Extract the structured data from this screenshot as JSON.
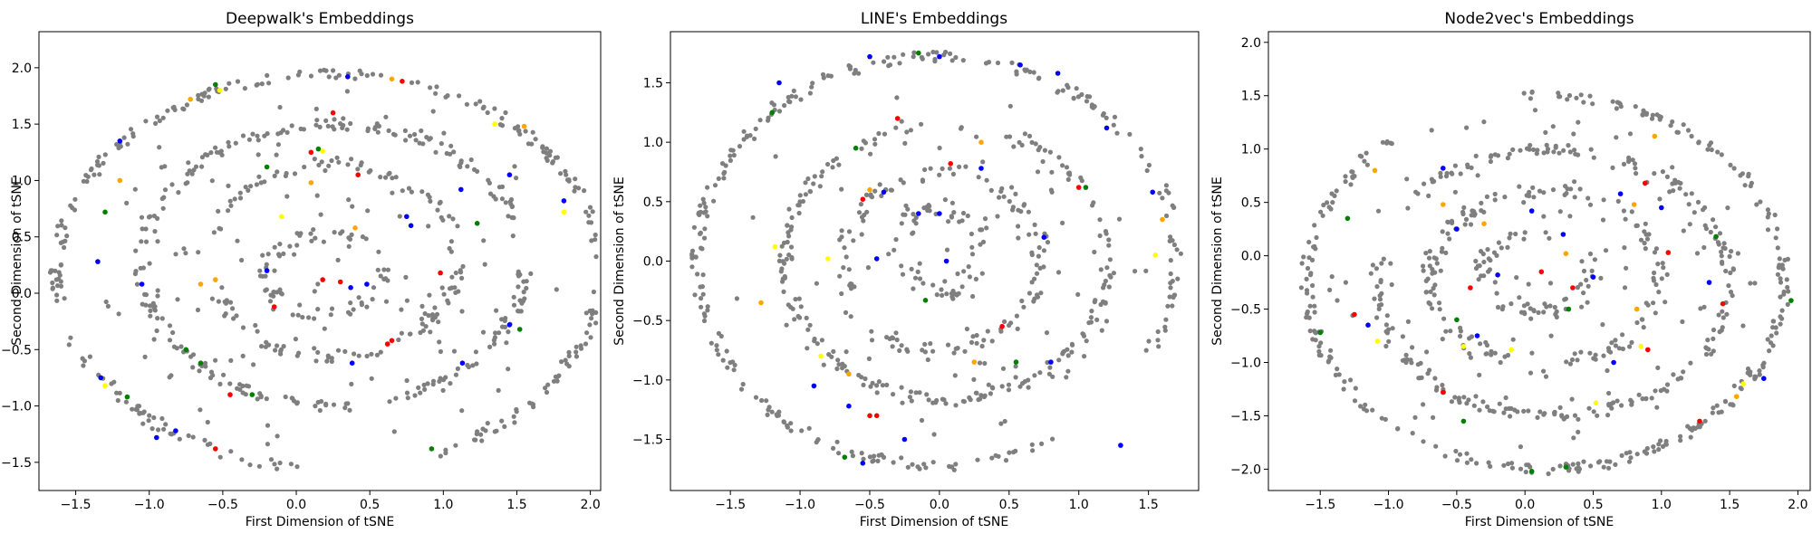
{
  "chart_data": [
    {
      "type": "scatter",
      "title": "Deepwalk's Embeddings",
      "xlabel": "First Dimension of tSNE",
      "ylabel": "Second Dimension of tSNE",
      "xlim": [
        -1.75,
        2.07
      ],
      "ylim": [
        -1.75,
        2.32
      ],
      "xticks": [
        -1.5,
        -1.0,
        -0.5,
        0.0,
        0.5,
        1.0,
        1.5,
        2.0
      ],
      "yticks": [
        -1.5,
        -1.0,
        -0.5,
        0.0,
        0.5,
        1.0,
        1.5,
        2.0
      ],
      "grid": false,
      "colors": {
        "base": "#7f7f7f",
        "red": "#ff0000",
        "blue": "#0000ff",
        "green": "#008000",
        "orange": "#ffa500",
        "yellow": "#ffff00"
      },
      "structure": {
        "rings": [
          {
            "cx": 0.22,
            "cy": 0.2,
            "rx": 1.85,
            "ry": 1.75,
            "n": 320,
            "gap": [
              265,
              290
            ],
            "jitter": 0.045
          },
          {
            "cx": 0.25,
            "cy": 0.25,
            "rx": 1.3,
            "ry": 1.25,
            "n": 230,
            "gap": [
              -20,
              10
            ],
            "jitter": 0.05
          },
          {
            "cx": 0.25,
            "cy": 0.3,
            "rx": 0.85,
            "ry": 0.85,
            "n": 150,
            "gap": [
              160,
              200
            ],
            "jitter": 0.06
          },
          {
            "cx": 0.2,
            "cy": 0.15,
            "rx": 0.4,
            "ry": 0.35,
            "n": 70,
            "gap": [
              20,
              60
            ],
            "jitter": 0.07
          }
        ],
        "scatter": {
          "cx": 0.2,
          "cy": 0.2,
          "rx": 1.6,
          "ry": 1.6,
          "n": 120
        }
      },
      "series": [
        {
          "x": [
            0.25,
            0.42,
            0.98,
            0.65,
            0.1,
            -0.45,
            -0.15,
            0.3,
            0.18,
            0.72,
            -0.55,
            0.62
          ],
          "y": [
            1.6,
            1.05,
            0.18,
            -0.42,
            1.25,
            -0.9,
            -0.12,
            0.1,
            0.12,
            1.88,
            -1.38,
            -0.45
          ],
          "color": "#ff0000"
        },
        {
          "x": [
            1.12,
            1.45,
            0.78,
            0.37,
            -1.33,
            -1.05,
            -0.82,
            1.13,
            0.38,
            0.75,
            0.48,
            -1.35,
            -0.95,
            1.45,
            0.35,
            -0.2,
            1.82,
            -1.2
          ],
          "y": [
            0.92,
            1.05,
            0.6,
            0.05,
            -0.75,
            0.08,
            -1.22,
            -0.62,
            -0.62,
            0.68,
            0.08,
            0.28,
            -1.28,
            -0.28,
            1.92,
            0.2,
            0.82,
            1.35
          ],
          "color": "#0000ff"
        },
        {
          "x": [
            -1.3,
            -0.75,
            -1.15,
            1.23,
            0.92,
            -0.3,
            -0.2,
            -0.55,
            1.52,
            -0.65,
            0.15
          ],
          "y": [
            0.72,
            -0.5,
            -0.92,
            0.62,
            -1.38,
            -0.9,
            1.12,
            1.85,
            -0.32,
            -0.62,
            1.28
          ],
          "color": "#008000"
        },
        {
          "x": [
            -0.65,
            -0.55,
            0.1,
            -1.2,
            -0.72,
            1.55,
            0.4,
            0.65
          ],
          "y": [
            0.08,
            0.12,
            0.98,
            1.0,
            1.72,
            1.48,
            0.58,
            1.9
          ],
          "color": "#ffa500"
        },
        {
          "x": [
            -0.1,
            0.18,
            1.82,
            -0.52,
            1.35,
            -1.3
          ],
          "y": [
            0.68,
            1.26,
            0.72,
            1.8,
            1.5,
            -0.82
          ],
          "color": "#ffff00"
        }
      ]
    },
    {
      "type": "scatter",
      "title": "LINE's Embeddings",
      "xlabel": "First Dimension of tSNE",
      "ylabel": "Second Dimension of tSNE",
      "xlim": [
        -1.93,
        1.86
      ],
      "ylim": [
        -1.93,
        1.93
      ],
      "xticks": [
        -1.5,
        -1.0,
        -0.5,
        0.0,
        0.5,
        1.0,
        1.5
      ],
      "yticks": [
        -1.5,
        -1.0,
        -0.5,
        0.0,
        0.5,
        1.0,
        1.5
      ],
      "grid": false,
      "colors": {
        "base": "#7f7f7f",
        "red": "#ff0000",
        "blue": "#0000ff",
        "green": "#008000",
        "orange": "#ffa500",
        "yellow": "#ffff00"
      },
      "structure": {
        "rings": [
          {
            "cx": -0.02,
            "cy": 0.0,
            "rx": 1.72,
            "ry": 1.72,
            "n": 300,
            "gap": [
              300,
              330
            ],
            "jitter": 0.045
          },
          {
            "cx": 0.05,
            "cy": 0.0,
            "rx": 1.15,
            "ry": 1.15,
            "n": 200,
            "gap": [
              70,
              100
            ],
            "jitter": 0.05
          },
          {
            "cx": 0.0,
            "cy": 0.0,
            "rx": 0.7,
            "ry": 0.75,
            "n": 130,
            "gap": [
              200,
              230
            ],
            "jitter": 0.06
          },
          {
            "cx": 0.0,
            "cy": 0.1,
            "rx": 0.3,
            "ry": 0.35,
            "n": 60,
            "gap": [
              330,
              360
            ],
            "jitter": 0.07
          }
        ],
        "scatter": {
          "cx": 0.0,
          "cy": 0.0,
          "rx": 1.5,
          "ry": 1.5,
          "n": 110
        }
      },
      "series": [
        {
          "x": [
            -0.5,
            -0.45,
            -0.55,
            0.08,
            0.45,
            1.0,
            -0.3
          ],
          "y": [
            -1.3,
            -1.3,
            0.52,
            0.82,
            -0.55,
            0.62,
            1.2
          ],
          "color": "#ff0000"
        },
        {
          "x": [
            -0.65,
            -0.4,
            0.0,
            1.2,
            1.53,
            -0.55,
            0.0,
            -0.25,
            -0.5,
            0.75,
            -0.9,
            -1.15,
            0.05,
            0.8,
            0.85,
            0.3,
            1.3,
            0.58,
            -0.45,
            -0.15
          ],
          "y": [
            -1.22,
            0.58,
            0.4,
            1.12,
            0.58,
            -1.7,
            1.72,
            -1.5,
            1.72,
            0.2,
            -1.05,
            1.5,
            0.0,
            -0.85,
            1.58,
            0.78,
            -1.55,
            1.65,
            0.02,
            0.4
          ],
          "color": "#0000ff"
        },
        {
          "x": [
            -0.68,
            -1.2,
            1.05,
            -0.6,
            -0.1,
            0.55,
            -0.15
          ],
          "y": [
            -1.65,
            1.25,
            0.62,
            0.95,
            -0.33,
            -0.85,
            1.75
          ],
          "color": "#008000"
        },
        {
          "x": [
            -1.28,
            -0.65,
            0.3,
            1.6,
            -0.5,
            0.25
          ],
          "y": [
            -0.35,
            -0.95,
            1.0,
            0.35,
            0.6,
            -0.85
          ],
          "color": "#ffa500"
        },
        {
          "x": [
            -0.8,
            -1.18,
            1.55,
            -0.85
          ],
          "y": [
            0.02,
            0.12,
            0.05,
            -0.8
          ],
          "color": "#ffff00"
        }
      ]
    },
    {
      "type": "scatter",
      "title": "Node2vec's Embeddings",
      "xlabel": "First Dimension of tSNE",
      "ylabel": "Second Dimension of tSNE",
      "xlim": [
        -1.88,
        2.09
      ],
      "ylim": [
        -2.2,
        2.1
      ],
      "xticks": [
        -1.5,
        -1.0,
        -0.5,
        0.0,
        0.5,
        1.0,
        1.5,
        2.0
      ],
      "yticks": [
        -2.0,
        -1.5,
        -1.0,
        -0.5,
        0.0,
        0.5,
        1.0,
        1.5,
        2.0
      ],
      "grid": false,
      "colors": {
        "base": "#7f7f7f",
        "red": "#ff0000",
        "blue": "#0000ff",
        "green": "#008000",
        "orange": "#ffa500",
        "yellow": "#ffff00"
      },
      "structure": {
        "rings": [
          {
            "cx": 0.15,
            "cy": -0.25,
            "rx": 1.75,
            "ry": 1.75,
            "n": 320,
            "gap": [
              95,
              130
            ],
            "jitter": 0.045
          },
          {
            "cx": 0.2,
            "cy": -0.25,
            "rx": 1.3,
            "ry": 1.25,
            "n": 230,
            "gap": [
              140,
              170
            ],
            "jitter": 0.05
          },
          {
            "cx": 0.15,
            "cy": -0.2,
            "rx": 0.85,
            "ry": 0.8,
            "n": 150,
            "gap": [
              250,
              280
            ],
            "jitter": 0.06
          },
          {
            "cx": 0.1,
            "cy": -0.15,
            "rx": 0.4,
            "ry": 0.35,
            "n": 70,
            "gap": [
              40,
              80
            ],
            "jitter": 0.07
          }
        ],
        "scatter": {
          "cx": 0.1,
          "cy": -0.2,
          "rx": 1.6,
          "ry": 1.6,
          "n": 120
        }
      },
      "series": [
        {
          "x": [
            0.88,
            -1.25,
            -0.6,
            1.05,
            1.28,
            0.35,
            0.12,
            -0.4,
            0.9,
            1.45
          ],
          "y": [
            0.68,
            -0.55,
            -1.28,
            0.03,
            -1.55,
            -0.3,
            -0.15,
            -0.3,
            -0.88,
            -0.45
          ],
          "color": "#ff0000"
        },
        {
          "x": [
            -0.6,
            0.05,
            0.7,
            1.75,
            -1.15,
            -0.5,
            0.5,
            1.35,
            0.65,
            -0.2,
            1.0,
            -0.35,
            0.28
          ],
          "y": [
            0.82,
            0.42,
            0.58,
            -1.15,
            -0.65,
            0.25,
            -0.2,
            -0.25,
            -1.0,
            -0.18,
            0.45,
            -0.75,
            0.2
          ],
          "color": "#0000ff"
        },
        {
          "x": [
            -1.5,
            0.32,
            1.95,
            -0.5,
            0.3,
            -0.45,
            1.4,
            0.05,
            -1.3
          ],
          "y": [
            -0.72,
            -0.5,
            -0.42,
            -0.6,
            -1.98,
            -1.55,
            0.18,
            -2.02,
            0.35
          ],
          "color": "#008000"
        },
        {
          "x": [
            -1.1,
            0.95,
            0.3,
            -0.6,
            0.82,
            -0.3,
            0.8,
            1.55
          ],
          "y": [
            0.8,
            1.12,
            0.02,
            0.48,
            -0.5,
            0.3,
            0.48,
            -1.32
          ],
          "color": "#ffa500"
        },
        {
          "x": [
            -1.08,
            -0.1,
            0.85,
            0.52,
            1.6,
            -0.45
          ],
          "y": [
            -0.8,
            -0.88,
            -0.85,
            -1.38,
            -1.2,
            -0.85
          ],
          "color": "#ffff00"
        }
      ]
    }
  ]
}
